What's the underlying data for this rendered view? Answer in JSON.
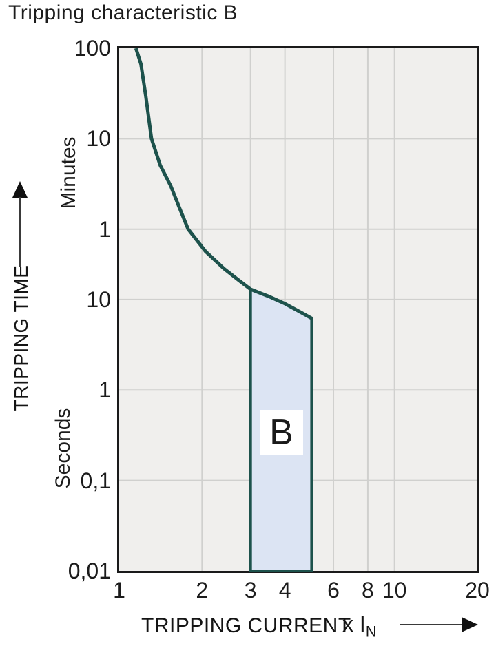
{
  "title": "Tripping characteristic B",
  "chart_data": {
    "type": "line",
    "title": "Tripping characteristic B",
    "grid": true,
    "plot_background": "#f0efed",
    "gridline_color": "#d0d0ce",
    "x_axis": {
      "label": "TRIPPING CURRENT",
      "unit_label": "x I",
      "unit_sub": "N",
      "scale": "log",
      "range": [
        1,
        20
      ],
      "ticks": [
        1,
        2,
        3,
        4,
        6,
        8,
        10,
        20
      ],
      "tick_labels": [
        "1",
        "2",
        "3",
        "4",
        "6",
        "8",
        "10",
        "20"
      ],
      "gridlines": [
        2,
        3,
        4,
        6,
        8,
        10
      ]
    },
    "y_axis": {
      "label": "TRIPPING TIME",
      "scale": "log",
      "range_seconds": [
        0.01,
        6000
      ],
      "groups": [
        {
          "unit": "Minutes",
          "ticks": [
            {
              "label": "100",
              "seconds": 6000
            },
            {
              "label": "10",
              "seconds": 600
            },
            {
              "label": "1",
              "seconds": 60
            }
          ]
        },
        {
          "unit": "Seconds",
          "ticks": [
            {
              "label": "10",
              "seconds": 10
            },
            {
              "label": "1",
              "seconds": 1
            },
            {
              "label": "0,1",
              "seconds": 0.1
            },
            {
              "label": "0,01",
              "seconds": 0.01
            }
          ]
        }
      ],
      "gridlines_seconds": [
        600,
        60,
        10,
        1,
        0.1
      ]
    },
    "series": [
      {
        "name": "tripping-time-upper-limit-curve",
        "color": "#1d524c",
        "width": 5,
        "points": [
          [
            1.15,
            6000
          ],
          [
            1.2,
            4000
          ],
          [
            1.25,
            1760
          ],
          [
            1.31,
            600
          ],
          [
            1.41,
            305
          ],
          [
            1.54,
            180
          ],
          [
            1.65,
            106
          ],
          [
            1.78,
            60
          ],
          [
            2.06,
            34
          ],
          [
            2.4,
            22
          ],
          [
            2.7,
            16.6
          ],
          [
            3.0,
            13
          ],
          [
            3.5,
            10.8
          ],
          [
            4.0,
            9.0
          ],
          [
            4.5,
            7.4
          ],
          [
            5.0,
            6.2
          ]
        ]
      }
    ],
    "region": {
      "label": "B",
      "fill": "#dce4f3",
      "stroke": "#1d524c",
      "stroke_width": 4,
      "x_range": [
        3,
        5
      ],
      "bottom_seconds": 0.01,
      "top_points": [
        [
          3.0,
          13
        ],
        [
          3.5,
          10.8
        ],
        [
          4.0,
          9.0
        ],
        [
          4.5,
          7.4
        ],
        [
          5.0,
          6.2
        ]
      ]
    }
  }
}
